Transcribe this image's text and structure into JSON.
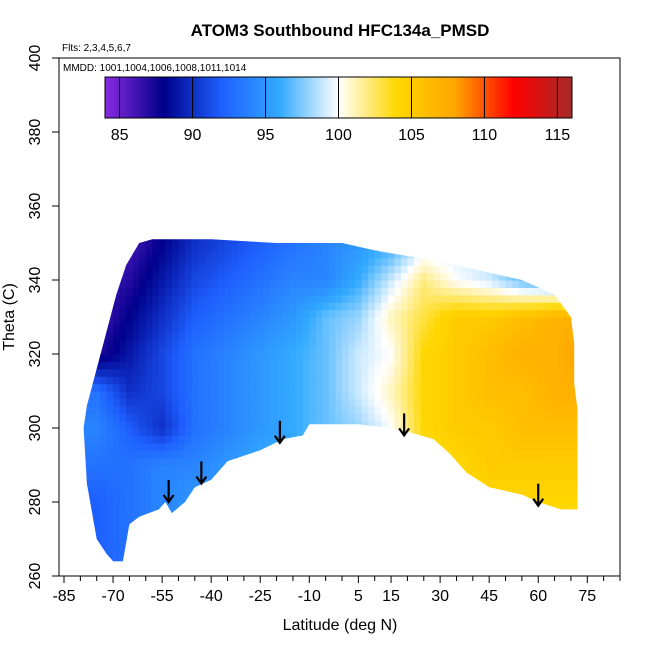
{
  "chart_data": {
    "type": "heatmap",
    "title": "ATOM3 Southbound HFC134a_PMSD",
    "subtitle_flights": "Flts: 2,3,4,5,6,7",
    "subtitle_dates": "MMDD: 1001,1004,1006,1008,1011,1014",
    "xlabel": "Latitude (deg N)",
    "ylabel": "Theta (C)",
    "xlim": [
      -85,
      85
    ],
    "ylim": [
      260,
      400
    ],
    "x_ticks": [
      -85,
      -70,
      -55,
      -40,
      -25,
      -10,
      5,
      15,
      30,
      45,
      60,
      75
    ],
    "x_minor_step": 5,
    "y_ticks": [
      260,
      280,
      300,
      320,
      340,
      360,
      380,
      400
    ],
    "colorbar": {
      "range": [
        84,
        116
      ],
      "ticks": [
        85,
        90,
        95,
        100,
        105,
        110,
        115
      ],
      "colors": [
        "#8a2be2",
        "#00008b",
        "#1e5fff",
        "#33aaff",
        "#ffffff",
        "#ffd700",
        "#ffa500",
        "#ff0000",
        "#a52a2a"
      ]
    },
    "field": {
      "x_knots": [
        -75,
        -65,
        -55,
        -45,
        -35,
        -25,
        -15,
        -5,
        5,
        15,
        25,
        35,
        45,
        55,
        65,
        72
      ],
      "rows": [
        {
          "theta": 350,
          "values": [
            84,
            86,
            88,
            90,
            91,
            92,
            93,
            94,
            95,
            96,
            99,
            99,
            99,
            96,
            94,
            93
          ]
        },
        {
          "theta": 340,
          "values": [
            86,
            87,
            89,
            91,
            92,
            93,
            94,
            94,
            96,
            99,
            102,
            100,
            99,
            97,
            96,
            95
          ]
        },
        {
          "theta": 330,
          "values": [
            86,
            88,
            90,
            92,
            93,
            94,
            95,
            97,
            98,
            101,
            103,
            105,
            105,
            106,
            107,
            107
          ]
        },
        {
          "theta": 320,
          "values": [
            87,
            89,
            91,
            93,
            94,
            95,
            96,
            97,
            99,
            100,
            104,
            105,
            106,
            107,
            107,
            108
          ]
        },
        {
          "theta": 310,
          "values": [
            93,
            90,
            91,
            93,
            94,
            95,
            96,
            97,
            99,
            101,
            104,
            105,
            106,
            106,
            107,
            107
          ]
        },
        {
          "theta": 300,
          "values": [
            94,
            92,
            90,
            93,
            94,
            95,
            96,
            97,
            98,
            100,
            104,
            105,
            105,
            106,
            106,
            106
          ]
        },
        {
          "theta": 290,
          "values": [
            93,
            93,
            94,
            94,
            95,
            96,
            96,
            97,
            98,
            100,
            103,
            104,
            105,
            105,
            105,
            105
          ]
        },
        {
          "theta": 280,
          "values": [
            92,
            93,
            94,
            95,
            95,
            96,
            96,
            97,
            98,
            100,
            102,
            103,
            104,
            104,
            104,
            104
          ]
        },
        {
          "theta": 270,
          "values": [
            92,
            93,
            94,
            95,
            95,
            96,
            96,
            97,
            98,
            100,
            102,
            103,
            104,
            104,
            104,
            104
          ]
        }
      ],
      "top_boundary": [
        [
          -78,
          306
        ],
        [
          -75,
          316
        ],
        [
          -72,
          326
        ],
        [
          -69,
          336
        ],
        [
          -66,
          344
        ],
        [
          -62,
          350
        ],
        [
          -58,
          351
        ],
        [
          -40,
          351
        ],
        [
          -20,
          350
        ],
        [
          0,
          350
        ],
        [
          10,
          348
        ],
        [
          30,
          345
        ],
        [
          45,
          342
        ],
        [
          55,
          340
        ],
        [
          65,
          336
        ],
        [
          70,
          330
        ],
        [
          71,
          323
        ],
        [
          71,
          312
        ],
        [
          72,
          305
        ]
      ],
      "bottom_boundary": [
        [
          72,
          305
        ],
        [
          72,
          278
        ],
        [
          67,
          278
        ],
        [
          60,
          280
        ],
        [
          55,
          282
        ],
        [
          45,
          284
        ],
        [
          38,
          288
        ],
        [
          33,
          293
        ],
        [
          28,
          297
        ],
        [
          20,
          299
        ],
        [
          15,
          300
        ],
        [
          5,
          301
        ],
        [
          -10,
          301
        ],
        [
          -12,
          298
        ],
        [
          -18,
          297
        ],
        [
          -25,
          294
        ],
        [
          -35,
          291
        ],
        [
          -40,
          286
        ],
        [
          -45,
          284
        ],
        [
          -48,
          280
        ],
        [
          -52,
          277
        ],
        [
          -54,
          280
        ],
        [
          -56,
          278
        ],
        [
          -62,
          276
        ],
        [
          -65,
          274
        ],
        [
          -67,
          264
        ],
        [
          -70,
          264
        ],
        [
          -72,
          266
        ],
        [
          -75,
          270
        ],
        [
          -78,
          285
        ],
        [
          -79,
          300
        ],
        [
          -78,
          306
        ]
      ]
    },
    "arrows": [
      {
        "lat": -53,
        "theta": 280
      },
      {
        "lat": -43,
        "theta": 285
      },
      {
        "lat": -19,
        "theta": 296
      },
      {
        "lat": 19,
        "theta": 298
      },
      {
        "lat": 60,
        "theta": 279
      }
    ]
  }
}
